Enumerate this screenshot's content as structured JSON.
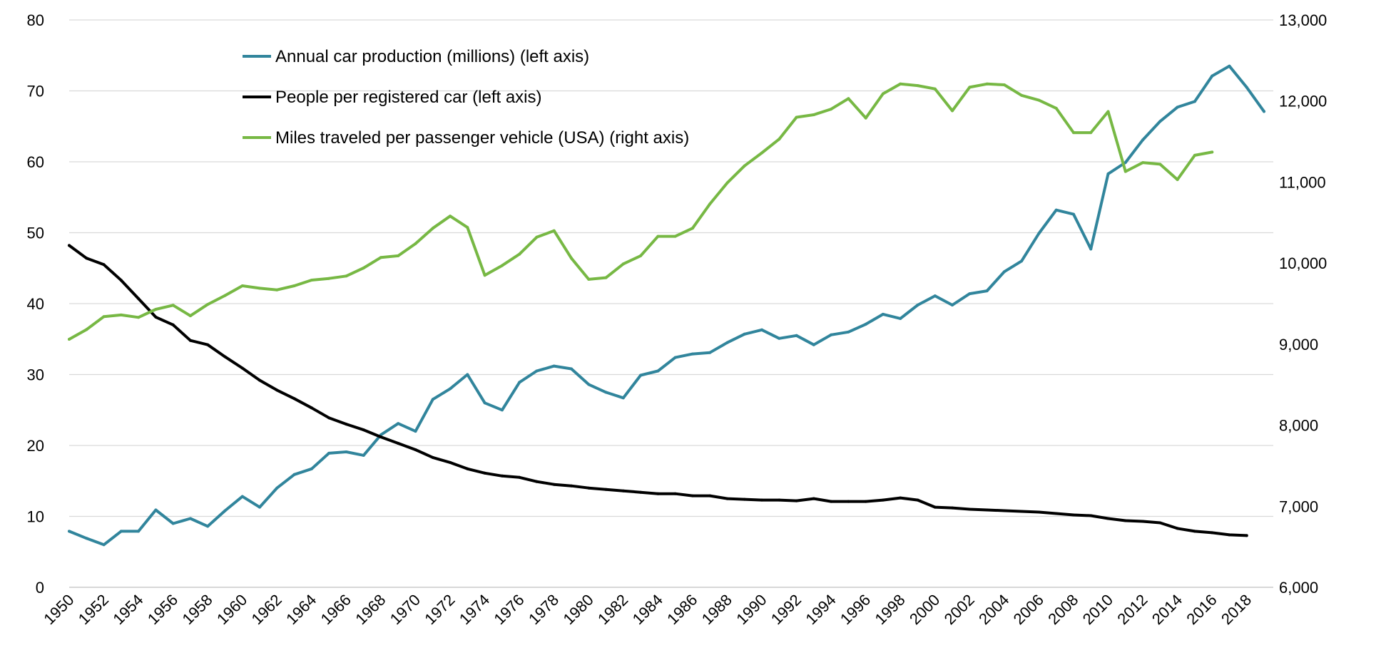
{
  "chart_data": {
    "type": "line",
    "x": [
      1950,
      1951,
      1952,
      1953,
      1954,
      1955,
      1956,
      1957,
      1958,
      1959,
      1960,
      1961,
      1962,
      1963,
      1964,
      1965,
      1966,
      1967,
      1968,
      1969,
      1970,
      1971,
      1972,
      1973,
      1974,
      1975,
      1976,
      1977,
      1978,
      1979,
      1980,
      1981,
      1982,
      1983,
      1984,
      1985,
      1986,
      1987,
      1988,
      1989,
      1990,
      1991,
      1992,
      1993,
      1994,
      1995,
      1996,
      1997,
      1998,
      1999,
      2000,
      2001,
      2002,
      2003,
      2004,
      2005,
      2006,
      2007,
      2008,
      2009,
      2010,
      2011,
      2012,
      2013,
      2014,
      2015,
      2016,
      2017,
      2018,
      2019
    ],
    "x_tick_labels": [
      "1950",
      "1952",
      "1954",
      "1956",
      "1958",
      "1960",
      "1962",
      "1964",
      "1966",
      "1968",
      "1970",
      "1972",
      "1974",
      "1976",
      "1978",
      "1980",
      "1982",
      "1984",
      "1986",
      "1988",
      "1990",
      "1992",
      "1994",
      "1996",
      "1998",
      "2000",
      "2002",
      "2004",
      "2006",
      "2008",
      "2010",
      "2012",
      "2014",
      "2016",
      "2018"
    ],
    "y_left": {
      "ylim": [
        0,
        80
      ],
      "ticks": [
        "0",
        "10",
        "20",
        "30",
        "40",
        "50",
        "60",
        "70",
        "80"
      ]
    },
    "y_right": {
      "ylim": [
        6000,
        13000
      ],
      "ticks": [
        "6,000",
        "7,000",
        "8,000",
        "9,000",
        "10,000",
        "11,000",
        "12,000",
        "13,000"
      ]
    },
    "grid": true,
    "legend_position": "top-left",
    "series": [
      {
        "name": "Annual car production (millions) (left axis)",
        "axis": "left",
        "color": "#31859c",
        "values": [
          7.9,
          6.9,
          6.0,
          7.9,
          7.9,
          10.9,
          9.0,
          9.7,
          8.6,
          10.8,
          12.8,
          11.3,
          14.0,
          15.9,
          16.7,
          18.9,
          19.1,
          18.6,
          21.5,
          23.1,
          22.0,
          26.5,
          28.0,
          30.0,
          26.0,
          25.0,
          28.9,
          30.5,
          31.2,
          30.8,
          28.6,
          27.5,
          26.7,
          29.9,
          30.5,
          32.4,
          32.9,
          33.1,
          34.5,
          35.7,
          36.3,
          35.1,
          35.5,
          34.2,
          35.6,
          36.0,
          37.1,
          38.5,
          37.9,
          39.8,
          41.1,
          39.8,
          41.4,
          41.8,
          44.5,
          46.0,
          49.9,
          53.2,
          52.6,
          47.7,
          58.3,
          59.9,
          63.1,
          65.7,
          67.7,
          68.5,
          72.1,
          73.5,
          70.5,
          67.1
        ]
      },
      {
        "name": "People per registered car (left axis)",
        "axis": "left",
        "color": "#000000",
        "values": [
          48.2,
          46.4,
          45.5,
          43.3,
          40.7,
          38.1,
          37.0,
          34.8,
          34.2,
          32.5,
          30.9,
          29.2,
          27.8,
          26.6,
          25.3,
          23.9,
          23.0,
          22.2,
          21.2,
          20.3,
          19.4,
          18.3,
          17.6,
          16.7,
          16.1,
          15.7,
          15.5,
          14.9,
          14.5,
          14.3,
          14.0,
          13.8,
          13.6,
          13.4,
          13.2,
          13.2,
          12.9,
          12.9,
          12.5,
          12.4,
          12.3,
          12.3,
          12.2,
          12.5,
          12.1,
          12.1,
          12.1,
          12.3,
          12.6,
          12.3,
          11.3,
          11.2,
          11.0,
          10.9,
          10.8,
          10.7,
          10.6,
          10.4,
          10.2,
          10.1,
          9.7,
          9.4,
          9.3,
          9.1,
          8.3,
          7.9,
          7.7,
          7.4,
          7.3,
          null
        ]
      },
      {
        "name": "Miles traveled per passenger vehicle (USA) (right axis)",
        "axis": "right",
        "color": "#77b844",
        "values": [
          9060,
          9180,
          9340,
          9360,
          9330,
          9430,
          9480,
          9350,
          9490,
          9600,
          9720,
          9690,
          9670,
          9720,
          9790,
          9810,
          9840,
          9940,
          10070,
          10090,
          10240,
          10430,
          10580,
          10440,
          9850,
          9970,
          10110,
          10320,
          10400,
          10060,
          9800,
          9820,
          9990,
          10090,
          10330,
          10330,
          10430,
          10730,
          10990,
          11200,
          11360,
          11530,
          11800,
          11830,
          11900,
          12030,
          11790,
          12090,
          12210,
          12190,
          12150,
          11880,
          12170,
          12210,
          12200,
          12070,
          12010,
          11910,
          11610,
          11610,
          11870,
          11130,
          11240,
          11220,
          11030,
          11330,
          11370,
          null,
          null,
          null
        ]
      }
    ]
  }
}
